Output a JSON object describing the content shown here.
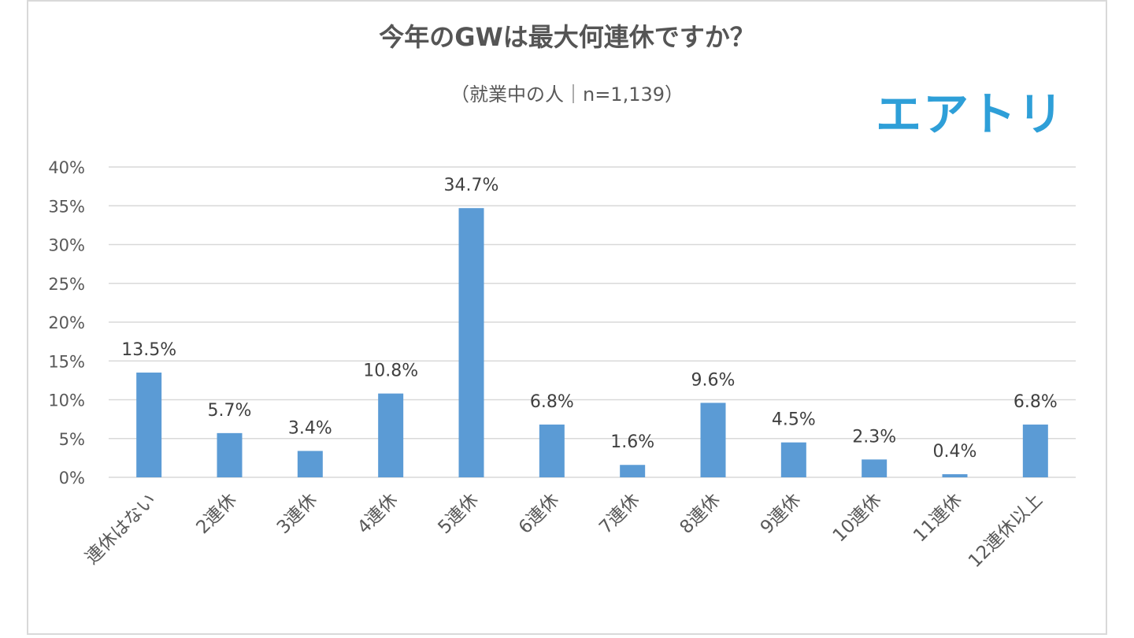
{
  "chart_data": {
    "type": "bar",
    "title": "今年のGWは最大何連休ですか？",
    "subtitle": "（就業中の人｜n=1,139）",
    "xlabel": "",
    "ylabel": "",
    "ylim": [
      0,
      40
    ],
    "y_ticks": [
      0,
      5,
      10,
      15,
      20,
      25,
      30,
      35,
      40
    ],
    "y_tick_suffix": "%",
    "grid": true,
    "legend": "none",
    "bar_color": "#5b9bd5",
    "categories": [
      "連休はない",
      "2連休",
      "3連休",
      "4連休",
      "5連休",
      "6連休",
      "7連休",
      "8連休",
      "9連休",
      "10連休",
      "11連休",
      "12連休以上"
    ],
    "values": [
      13.5,
      5.7,
      3.4,
      10.8,
      34.7,
      6.8,
      1.6,
      9.6,
      4.5,
      2.3,
      0.4,
      6.8
    ],
    "data_labels": [
      "13.5%",
      "5.7%",
      "3.4%",
      "10.8%",
      "34.7%",
      "6.8%",
      "1.6%",
      "9.6%",
      "4.5%",
      "2.3%",
      "0.4%",
      "6.8%"
    ]
  },
  "brand": {
    "logo_text": "エアトリ",
    "color": "#2e9fd8"
  }
}
